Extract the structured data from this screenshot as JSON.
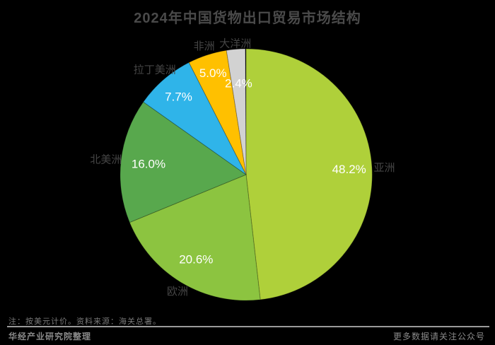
{
  "page": {
    "background_color": "#000000",
    "accent_text_color": "#ffffff",
    "muted_text_color": "#4a4a4a"
  },
  "title": {
    "text": "2024年中国货物出口贸易市场结构"
  },
  "chart_data": {
    "type": "pie",
    "title": "2024年中国货物出口贸易市场结构",
    "start_angle_deg": 0,
    "direction": "clockwise",
    "legend_position": "none",
    "pct_label_color": "#ffffff",
    "category_label_color": "#454545",
    "slices": [
      {
        "label": "亚洲",
        "value_pct": 48.2,
        "pct_label": "48.2%",
        "color": "#AFD03A"
      },
      {
        "label": "欧洲",
        "value_pct": 20.6,
        "pct_label": "20.6%",
        "color": "#8CC440"
      },
      {
        "label": "北美洲",
        "value_pct": 16.0,
        "pct_label": "16.0%",
        "color": "#58A84D"
      },
      {
        "label": "拉丁美洲",
        "value_pct": 7.7,
        "pct_label": "7.7%",
        "color": "#2FB4E9"
      },
      {
        "label": "非洲",
        "value_pct": 5.0,
        "pct_label": "5.0%",
        "color": "#FFC000"
      },
      {
        "label": "大洋洲",
        "value_pct": 2.4,
        "pct_label": "2.4%",
        "color": "#D2D2D2"
      }
    ]
  },
  "footer": {
    "note": "注：按美元计价。资料来源：海关总署。",
    "left": "华经产业研究院整理",
    "right": "更多数据请关注公众号"
  }
}
